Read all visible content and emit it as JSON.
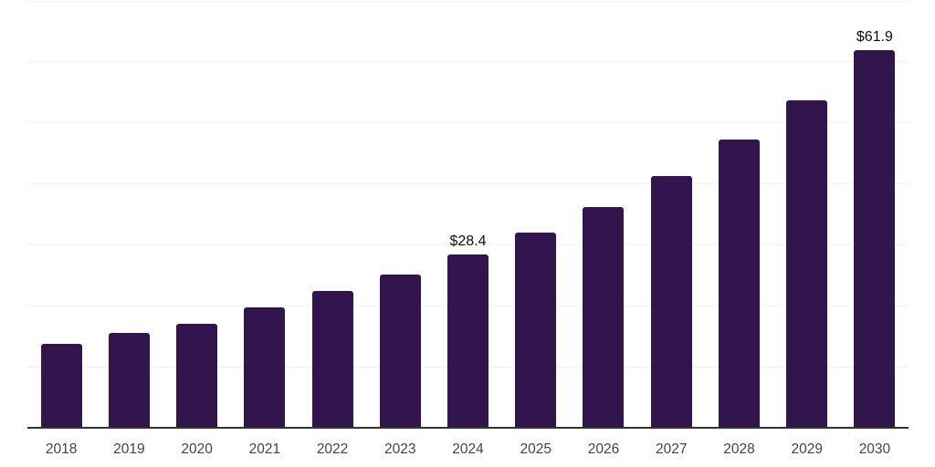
{
  "chart_data": {
    "type": "bar",
    "title": "",
    "xlabel": "",
    "ylabel": "",
    "categories": [
      "2018",
      "2019",
      "2020",
      "2021",
      "2022",
      "2023",
      "2024",
      "2025",
      "2026",
      "2027",
      "2028",
      "2029",
      "2030"
    ],
    "values": [
      13.8,
      15.6,
      17.0,
      19.8,
      22.4,
      25.1,
      28.4,
      32.0,
      36.2,
      41.3,
      47.2,
      53.7,
      61.9
    ],
    "data_labels": {
      "2024": "$28.4",
      "2030": "$61.9"
    },
    "ylim": [
      0,
      70
    ],
    "gridline_step": 10,
    "grid": true,
    "legend": "none",
    "y_axis_ticks_visible": false,
    "colors": {
      "bar": "#32154d",
      "gridline": "#f3f3f3",
      "axis_line": "#333333",
      "tick_label": "#444444",
      "data_label": "#0d0d0d",
      "background": "#ffffff"
    }
  }
}
